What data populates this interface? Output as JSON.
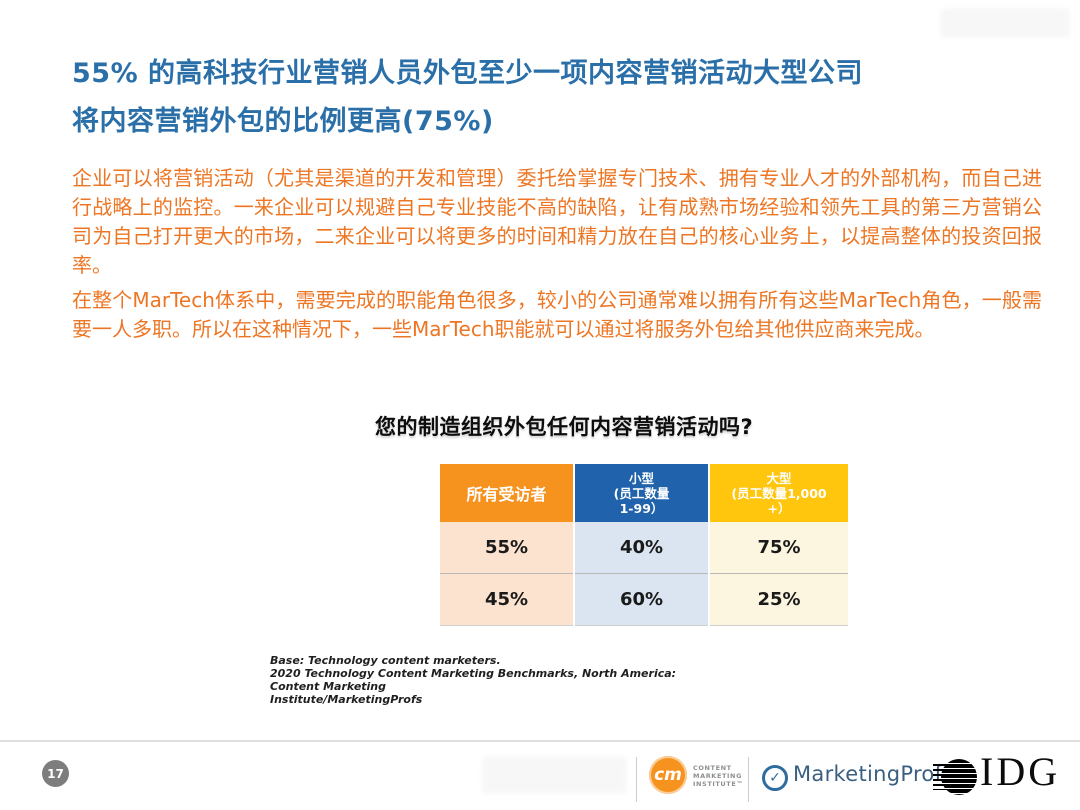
{
  "page": {
    "number": "17"
  },
  "heading": {
    "line1": "55% 的高科技行业营销人员外包至少一项内容营销活动大型公司",
    "line2": "将内容营销外包的比例更高(75%)",
    "color": "#2B6FA9"
  },
  "body": {
    "paragraph1": "企业可以将营销活动（尤其是渠道的开发和管理）委托给掌握专门技术、拥有专业人才的外部机构，而自己进行战略上的监控。一来企业可以规避自己专业技能不高的缺陷，让有成熟市场经验和领先工具的第三方营销公司为自己打开更大的市场，二来企业可以将更多的时间和精力放在自己的核心业务上，以提高整体的投资回报率。",
    "paragraph2": "在整个MarTech体系中，需要完成的职能角色很多，较小的公司通常难以拥有所有这些MarTech角色，一般需要一人多职。所以在这种情况下，一些MarTech职能就可以通过将服务外包给其他供应商来完成。",
    "color": "#ED7624"
  },
  "chart": {
    "title": "您的制造组织外包任何内容营销活动吗?",
    "source": "Base: Technology content marketers.\n2020 Technology Content Marketing Benchmarks, North America: Content Marketing\nInstitute/MarketingProfs"
  },
  "chart_data": {
    "type": "table",
    "title": "您的制造组织外包任何内容营销活动吗?",
    "columns": [
      "所有受访者",
      "小型(员工数量1-99）",
      "大型(员工数量1,000+）"
    ],
    "rows": [
      [
        55,
        40,
        75
      ],
      [
        45,
        60,
        25
      ]
    ],
    "unit": "%",
    "header_colors": [
      "#F6921E",
      "#2063AC",
      "#FFC60D"
    ],
    "cell_colors": [
      "#FBE3D0",
      "#DBE5F1",
      "#FCF5DF"
    ]
  },
  "table": {
    "headers": [
      {
        "label": "所有受访者"
      },
      {
        "label": "小型\n(员工数量\n1-99）"
      },
      {
        "label": "大型\n(员工数量1,000\n+）"
      }
    ],
    "rows": [
      {
        "cells": [
          "55%",
          "40%",
          "75%"
        ]
      },
      {
        "cells": [
          "45%",
          "60%",
          "25%"
        ]
      }
    ]
  },
  "footer": {
    "cmi": {
      "icon_text": "cm",
      "label": "CONTENT\nMARKETING\nINSTITUTE™"
    },
    "marketingprofs": {
      "icon_glyph": "✓",
      "name": "MarketingProfs"
    },
    "idg": {
      "name": "IDG"
    }
  }
}
